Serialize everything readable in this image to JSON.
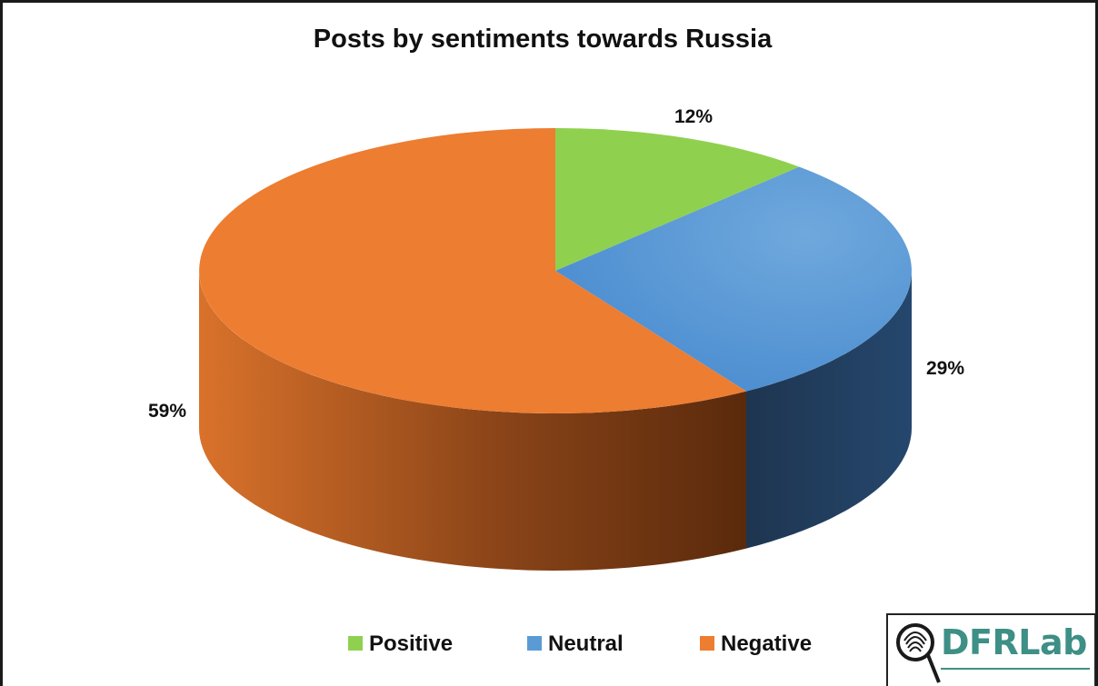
{
  "chart_data": {
    "type": "pie",
    "title": "Posts by sentiments towards Russia",
    "categories": [
      "Positive",
      "Neutral",
      "Negative"
    ],
    "values": [
      12,
      29,
      59
    ],
    "value_labels": [
      "12%",
      "29%",
      "59%"
    ],
    "colors": {
      "Positive": "#8fd14f",
      "Neutral": "#5b9bd5",
      "Negative": "#ed7d31"
    },
    "style": "3d",
    "legend_position": "bottom"
  },
  "logo": {
    "text": "DFRLab",
    "icon": "fingerprint-magnifier-icon"
  }
}
